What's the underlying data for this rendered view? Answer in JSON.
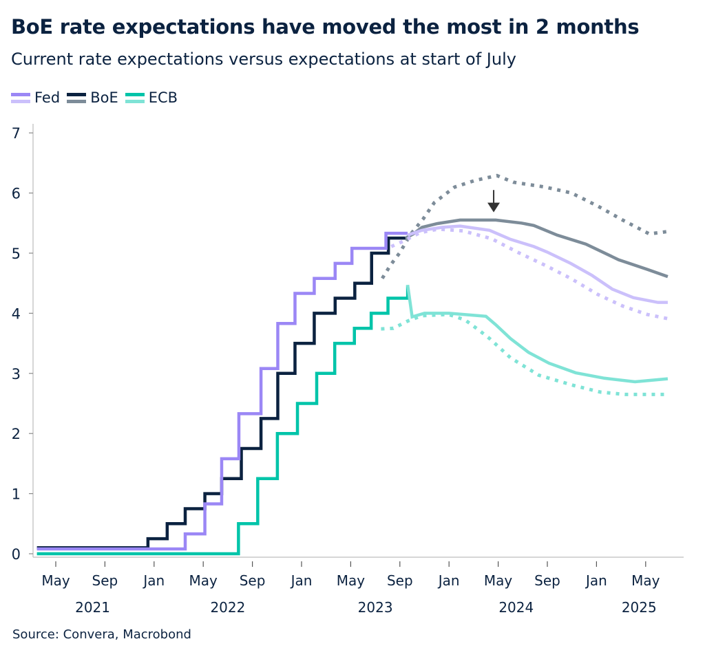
{
  "title": "BoE rate expectations have moved the most in 2 months",
  "subtitle": "Current rate expectations versus expectations at start of July",
  "source": "Source: Convera, Macrobond",
  "legend": [
    {
      "label": "Fed",
      "color_actual": "#9b87f5",
      "color_forward": "#cbc0fb"
    },
    {
      "label": "BoE",
      "color_actual": "#0b2240",
      "color_forward": "#7d8c99"
    },
    {
      "label": "ECB",
      "color_actual": "#00c4a9",
      "color_forward": "#7fe3d6"
    }
  ],
  "chart_data": {
    "type": "line",
    "ylim": [
      0,
      7
    ],
    "yticks": [
      "0",
      "1",
      "2",
      "3",
      "4",
      "5",
      "6",
      "7"
    ],
    "xlim": [
      "2021-03-15",
      "2025-08-10"
    ],
    "xticks": [
      {
        "date": "2021-05-01",
        "label": "May"
      },
      {
        "date": "2021-09-01",
        "label": "Sep"
      },
      {
        "date": "2022-01-01",
        "label": "Jan"
      },
      {
        "date": "2022-05-01",
        "label": "May"
      },
      {
        "date": "2022-09-01",
        "label": "Sep"
      },
      {
        "date": "2023-01-01",
        "label": "Jan"
      },
      {
        "date": "2023-05-01",
        "label": "May"
      },
      {
        "date": "2023-09-01",
        "label": "Sep"
      },
      {
        "date": "2024-01-01",
        "label": "Jan"
      },
      {
        "date": "2024-05-01",
        "label": "May"
      },
      {
        "date": "2024-09-01",
        "label": "Sep"
      },
      {
        "date": "2025-01-01",
        "label": "Jan"
      },
      {
        "date": "2025-05-01",
        "label": "May"
      }
    ],
    "year_labels": [
      {
        "date": "2021-08-01",
        "label": "2021"
      },
      {
        "date": "2022-07-01",
        "label": "2022"
      },
      {
        "date": "2023-07-01",
        "label": "2023"
      },
      {
        "date": "2024-06-15",
        "label": "2024"
      },
      {
        "date": "2025-04-15",
        "label": "2025"
      }
    ],
    "grid": false,
    "legend_position": "top-left",
    "annotation": {
      "type": "arrow-down",
      "date": "2024-04-20",
      "value_from": 6.05,
      "value_to": 5.68
    },
    "series": [
      {
        "name": "ECB",
        "style": "step",
        "color": "#00c4a9",
        "points": [
          [
            "2021-03-15",
            0
          ],
          [
            "2022-07-27",
            0.5
          ],
          [
            "2022-09-14",
            1.25
          ],
          [
            "2022-11-02",
            2.0
          ],
          [
            "2022-12-21",
            2.5
          ],
          [
            "2023-02-08",
            3.0
          ],
          [
            "2023-03-22",
            3.5
          ],
          [
            "2023-05-10",
            3.75
          ],
          [
            "2023-06-21",
            4.0
          ],
          [
            "2023-08-02",
            4.25
          ],
          [
            "2023-09-20",
            4.47
          ]
        ]
      },
      {
        "name": "ECB",
        "style": "forward",
        "color": "#7fe3d6",
        "points": [
          [
            "2023-09-20",
            4.47
          ],
          [
            "2023-10-01",
            3.94
          ],
          [
            "2023-11-01",
            4.0
          ],
          [
            "2024-01-01",
            4.0
          ],
          [
            "2024-04-01",
            3.95
          ],
          [
            "2024-04-25",
            3.81
          ],
          [
            "2024-06-01",
            3.58
          ],
          [
            "2024-07-15",
            3.35
          ],
          [
            "2024-09-05",
            3.17
          ],
          [
            "2024-11-10",
            3.01
          ],
          [
            "2025-01-20",
            2.92
          ],
          [
            "2025-04-05",
            2.86
          ],
          [
            "2025-06-25",
            2.91
          ]
        ]
      },
      {
        "name": "ECB",
        "style": "july",
        "color": "#7fe3d6",
        "points": [
          [
            "2023-07-15",
            3.74
          ],
          [
            "2023-08-15",
            3.75
          ],
          [
            "2023-09-20",
            3.87
          ],
          [
            "2023-10-25",
            3.96
          ],
          [
            "2023-12-30",
            3.98
          ],
          [
            "2024-02-10",
            3.89
          ],
          [
            "2024-03-10",
            3.74
          ],
          [
            "2024-04-10",
            3.58
          ],
          [
            "2024-06-01",
            3.26
          ],
          [
            "2024-08-10",
            2.97
          ],
          [
            "2024-11-05",
            2.8
          ],
          [
            "2025-01-10",
            2.69
          ],
          [
            "2025-03-10",
            2.65
          ],
          [
            "2025-06-25",
            2.65
          ]
        ]
      },
      {
        "name": "BoE",
        "style": "july",
        "color": "#7d8c99",
        "points": [
          [
            "2023-07-18",
            4.58
          ],
          [
            "2023-08-08",
            4.8
          ],
          [
            "2023-08-30",
            5.0
          ],
          [
            "2023-09-28",
            5.32
          ],
          [
            "2023-10-28",
            5.57
          ],
          [
            "2023-11-25",
            5.84
          ],
          [
            "2024-01-15",
            6.1
          ],
          [
            "2024-03-05",
            6.21
          ],
          [
            "2024-04-28",
            6.29
          ],
          [
            "2024-06-08",
            6.18
          ],
          [
            "2024-08-25",
            6.1
          ],
          [
            "2024-10-30",
            6.0
          ],
          [
            "2025-01-05",
            5.78
          ],
          [
            "2025-03-05",
            5.55
          ],
          [
            "2025-05-10",
            5.32
          ],
          [
            "2025-06-25",
            5.36
          ]
        ]
      },
      {
        "name": "BoE",
        "style": "step",
        "color": "#0b2240",
        "points": [
          [
            "2021-03-15",
            0.1
          ],
          [
            "2021-12-16",
            0.25
          ],
          [
            "2022-02-03",
            0.5
          ],
          [
            "2022-03-17",
            0.75
          ],
          [
            "2022-05-05",
            1.0
          ],
          [
            "2022-06-16",
            1.25
          ],
          [
            "2022-08-04",
            1.75
          ],
          [
            "2022-09-22",
            2.25
          ],
          [
            "2022-11-03",
            3.0
          ],
          [
            "2022-12-15",
            3.5
          ],
          [
            "2023-02-02",
            4.0
          ],
          [
            "2023-03-23",
            4.25
          ],
          [
            "2023-05-11",
            4.5
          ],
          [
            "2023-06-22",
            5.0
          ],
          [
            "2023-08-03",
            5.25
          ],
          [
            "2023-09-15",
            5.25
          ]
        ]
      },
      {
        "name": "BoE",
        "style": "forward",
        "color": "#7d8c99",
        "points": [
          [
            "2023-09-15",
            5.25
          ],
          [
            "2023-10-04",
            5.32
          ],
          [
            "2023-10-25",
            5.43
          ],
          [
            "2023-12-01",
            5.49
          ],
          [
            "2024-01-28",
            5.55
          ],
          [
            "2024-04-25",
            5.55
          ],
          [
            "2024-06-28",
            5.5
          ],
          [
            "2024-07-28",
            5.46
          ],
          [
            "2024-09-25",
            5.3
          ],
          [
            "2024-12-05",
            5.15
          ],
          [
            "2025-02-25",
            4.89
          ],
          [
            "2025-05-05",
            4.73
          ],
          [
            "2025-06-25",
            4.61
          ]
        ]
      },
      {
        "name": "Fed",
        "style": "july",
        "color": "#cbc0fb",
        "points": [
          [
            "2023-08-10",
            5.11
          ],
          [
            "2023-09-10",
            5.2
          ],
          [
            "2023-10-20",
            5.34
          ],
          [
            "2023-12-05",
            5.4
          ],
          [
            "2024-02-05",
            5.37
          ],
          [
            "2024-04-15",
            5.24
          ],
          [
            "2024-06-20",
            5.01
          ],
          [
            "2024-08-28",
            4.79
          ],
          [
            "2024-10-28",
            4.58
          ],
          [
            "2025-01-05",
            4.31
          ],
          [
            "2025-03-05",
            4.12
          ],
          [
            "2025-05-05",
            3.98
          ],
          [
            "2025-06-25",
            3.91
          ]
        ]
      },
      {
        "name": "Fed",
        "style": "step",
        "color": "#9b87f5",
        "points": [
          [
            "2021-03-15",
            0.08
          ],
          [
            "2022-03-17",
            0.33
          ],
          [
            "2022-05-05",
            0.83
          ],
          [
            "2022-06-16",
            1.58
          ],
          [
            "2022-07-28",
            2.33
          ],
          [
            "2022-09-22",
            3.08
          ],
          [
            "2022-11-03",
            3.83
          ],
          [
            "2022-12-15",
            4.33
          ],
          [
            "2023-02-02",
            4.58
          ],
          [
            "2023-03-23",
            4.83
          ],
          [
            "2023-05-04",
            5.08
          ],
          [
            "2023-07-27",
            5.33
          ],
          [
            "2023-09-20",
            5.33
          ]
        ]
      },
      {
        "name": "Fed",
        "style": "forward",
        "color": "#cbc0fb",
        "points": [
          [
            "2023-09-20",
            5.3
          ],
          [
            "2023-10-25",
            5.38
          ],
          [
            "2023-12-15",
            5.43
          ],
          [
            "2024-01-28",
            5.45
          ],
          [
            "2024-04-10",
            5.38
          ],
          [
            "2024-06-01",
            5.23
          ],
          [
            "2024-07-28",
            5.11
          ],
          [
            "2024-08-30",
            5.02
          ],
          [
            "2024-10-28",
            4.83
          ],
          [
            "2024-12-20",
            4.63
          ],
          [
            "2025-02-10",
            4.4
          ],
          [
            "2025-04-01",
            4.26
          ],
          [
            "2025-06-01",
            4.18
          ],
          [
            "2025-06-25",
            4.18
          ]
        ]
      }
    ]
  }
}
